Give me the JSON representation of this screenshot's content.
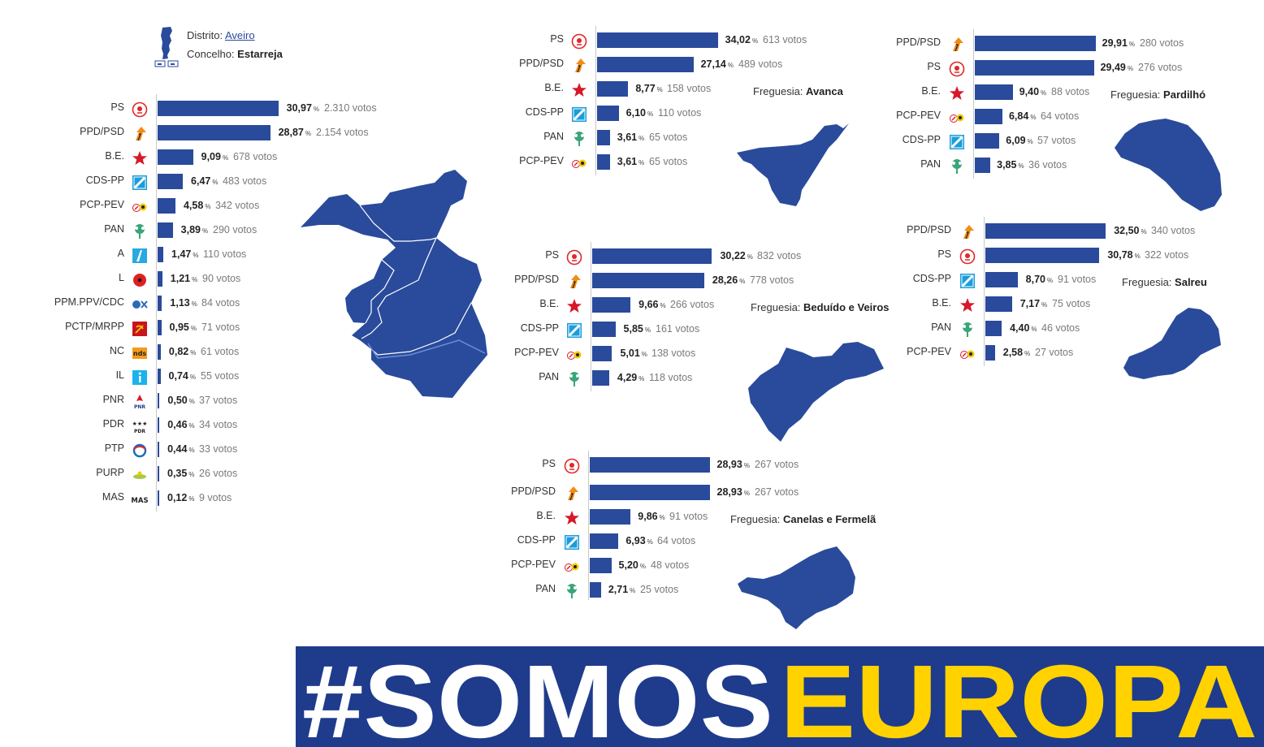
{
  "header": {
    "district_label": "Distrito:",
    "district_value": "Aveiro",
    "council_label": "Concelho:",
    "council_value": "Estarreja"
  },
  "banner": {
    "hash_somos": "#SOMOS",
    "europa": "EUROPA"
  },
  "icons": {
    "PS": "ps-rose-icon",
    "PPD/PSD": "psd-arrow-icon",
    "B.E.": "be-star-icon",
    "CDS-PP": "cds-square-icon",
    "PCP-PEV": "cdu-hammer-sickle-icon",
    "PAN": "pan-tree-icon",
    "A": "alianca-icon",
    "L": "livre-poppy-icon",
    "PPM.PPV/CDC": "basta-icon",
    "PCTP/MRPP": "mrpp-icon",
    "NC": "nds-icon",
    "IL": "il-icon",
    "PNR": "pnr-icon",
    "PDR": "pdr-stars-icon",
    "PTP": "ptp-icon",
    "PURP": "purp-icon",
    "MAS": "mas-icon"
  },
  "colors": {
    "bar": "#2a4b9b",
    "banner_bg": "#1f3b8c",
    "banner_yellow": "#ffd200"
  },
  "chart_data": [
    {
      "type": "bar",
      "title": "",
      "unit": "%",
      "votes_suffix": "votos",
      "categories": [
        "PS",
        "PPD/PSD",
        "B.E.",
        "CDS-PP",
        "PCP-PEV",
        "PAN",
        "A",
        "L",
        "PPM.PPV/CDC",
        "PCTP/MRPP",
        "NC",
        "IL",
        "PNR",
        "PDR",
        "PTP",
        "PURP",
        "MAS"
      ],
      "values": [
        "30,97",
        "28,87",
        "9,09",
        "6,47",
        "4,58",
        "3,89",
        "1,47",
        "1,21",
        "1,13",
        "0,95",
        "0,82",
        "0,74",
        "0,50",
        "0,46",
        "0,44",
        "0,35",
        "0,12"
      ],
      "votes": [
        "2.310",
        "2.154",
        "678",
        "483",
        "342",
        "290",
        "110",
        "90",
        "84",
        "71",
        "61",
        "55",
        "37",
        "34",
        "33",
        "26",
        "9"
      ]
    },
    {
      "type": "bar",
      "title": "Freguesia: Avanca",
      "title_label": "Freguesia:",
      "title_value": "Avanca",
      "unit": "%",
      "votes_suffix": "votos",
      "categories": [
        "PS",
        "PPD/PSD",
        "B.E.",
        "CDS-PP",
        "PAN",
        "PCP-PEV"
      ],
      "values": [
        "34,02",
        "27,14",
        "8,77",
        "6,10",
        "3,61",
        "3,61"
      ],
      "votes": [
        "613",
        "489",
        "158",
        "110",
        "65",
        "65"
      ]
    },
    {
      "type": "bar",
      "title": "Freguesia: Pardilhó",
      "title_label": "Freguesia:",
      "title_value": "Pardilhó",
      "unit": "%",
      "votes_suffix": "votos",
      "categories": [
        "PPD/PSD",
        "PS",
        "B.E.",
        "PCP-PEV",
        "CDS-PP",
        "PAN"
      ],
      "values": [
        "29,91",
        "29,49",
        "9,40",
        "6,84",
        "6,09",
        "3,85"
      ],
      "votes": [
        "280",
        "276",
        "88",
        "64",
        "57",
        "36"
      ]
    },
    {
      "type": "bar",
      "title": "Freguesia: Beduído e Veiros",
      "title_label": "Freguesia:",
      "title_value": "Beduído e Veiros",
      "unit": "%",
      "votes_suffix": "votos",
      "categories": [
        "PS",
        "PPD/PSD",
        "B.E.",
        "CDS-PP",
        "PCP-PEV",
        "PAN"
      ],
      "values": [
        "30,22",
        "28,26",
        "9,66",
        "5,85",
        "5,01",
        "4,29"
      ],
      "votes": [
        "832",
        "778",
        "266",
        "161",
        "138",
        "118"
      ]
    },
    {
      "type": "bar",
      "title": "Freguesia: Salreu",
      "title_label": "Freguesia:",
      "title_value": "Salreu",
      "unit": "%",
      "votes_suffix": "votos",
      "categories": [
        "PPD/PSD",
        "PS",
        "CDS-PP",
        "B.E.",
        "PAN",
        "PCP-PEV"
      ],
      "values": [
        "32,50",
        "30,78",
        "8,70",
        "7,17",
        "4,40",
        "2,58"
      ],
      "votes": [
        "340",
        "322",
        "91",
        "75",
        "46",
        "27"
      ]
    },
    {
      "type": "bar",
      "title": "Freguesia: Canelas e Fermelã",
      "title_label": "Freguesia:",
      "title_value": "Canelas e Fermelã",
      "unit": "%",
      "votes_suffix": "votos",
      "categories": [
        "PS",
        "PPD/PSD",
        "B.E.",
        "CDS-PP",
        "PCP-PEV",
        "PAN"
      ],
      "values": [
        "28,93",
        "28,93",
        "9,86",
        "6,93",
        "5,20",
        "2,71"
      ],
      "votes": [
        "267",
        "267",
        "91",
        "64",
        "48",
        "25"
      ]
    }
  ]
}
